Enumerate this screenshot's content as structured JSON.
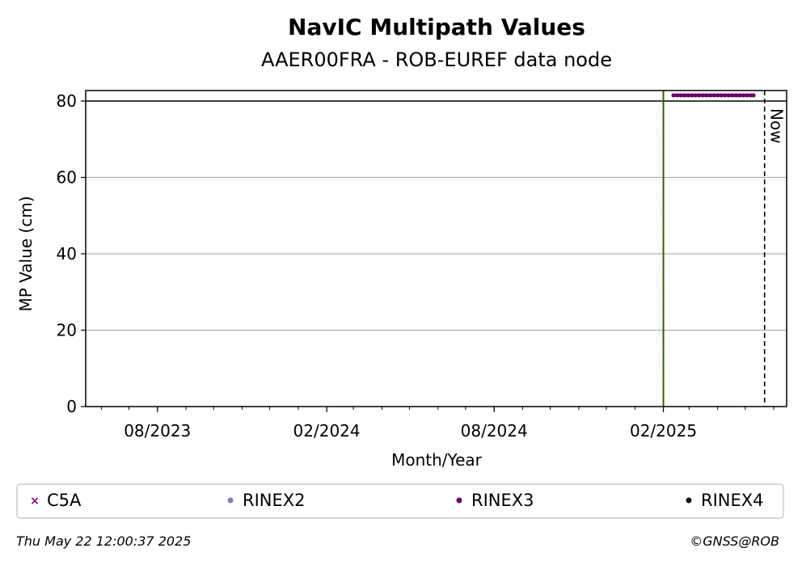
{
  "chart_data": {
    "type": "scatter",
    "title": "NavIC Multipath Values",
    "subtitle": "AAER00FRA - ROB-EUREF data node",
    "xlabel": "Month/Year",
    "ylabel": "MP Value (cm)",
    "x_type": "date",
    "xlim": [
      "2023-05-15",
      "2025-06-15"
    ],
    "ylim": [
      0,
      80
    ],
    "yticks": [
      0,
      20,
      40,
      60,
      80
    ],
    "xticks": [
      {
        "date": "2023-08-01",
        "label": "08/2023"
      },
      {
        "date": "2024-02-01",
        "label": "02/2024"
      },
      {
        "date": "2024-08-01",
        "label": "08/2024"
      },
      {
        "date": "2025-02-01",
        "label": "02/2025"
      }
    ],
    "grid": "y",
    "reference_lines": [
      {
        "type": "hline",
        "y": 80,
        "color": "#000000",
        "style": "solid"
      },
      {
        "type": "vline",
        "date": "2025-02-01",
        "color": "#008000",
        "overlay_color": "#cc0000",
        "style": "solid-dotted"
      },
      {
        "type": "vline",
        "date": "2025-05-22",
        "label": "Now",
        "color": "#000000",
        "style": "dashed"
      }
    ],
    "series": [
      {
        "name": "C5A",
        "marker": "x",
        "color": "#800080",
        "values": []
      },
      {
        "name": "RINEX2",
        "marker": "dot",
        "color": "#7b7fbf",
        "values": []
      },
      {
        "name": "RINEX3",
        "marker": "dot",
        "color": "#6a0066",
        "values": [
          {
            "x": "2025-02-12",
            "y": 81.5
          },
          {
            "x": "2025-02-16",
            "y": 81.5
          },
          {
            "x": "2025-02-20",
            "y": 81.5
          },
          {
            "x": "2025-02-24",
            "y": 81.5
          },
          {
            "x": "2025-02-28",
            "y": 81.5
          },
          {
            "x": "2025-03-04",
            "y": 81.5
          },
          {
            "x": "2025-03-08",
            "y": 81.5
          },
          {
            "x": "2025-03-12",
            "y": 81.5
          },
          {
            "x": "2025-03-16",
            "y": 81.5
          },
          {
            "x": "2025-03-20",
            "y": 81.5
          },
          {
            "x": "2025-03-24",
            "y": 81.5
          },
          {
            "x": "2025-03-28",
            "y": 81.5
          },
          {
            "x": "2025-04-01",
            "y": 81.5
          },
          {
            "x": "2025-04-05",
            "y": 81.5
          },
          {
            "x": "2025-04-09",
            "y": 81.5
          },
          {
            "x": "2025-04-13",
            "y": 81.5
          },
          {
            "x": "2025-04-17",
            "y": 81.5
          },
          {
            "x": "2025-04-21",
            "y": 81.5
          },
          {
            "x": "2025-04-25",
            "y": 81.5
          },
          {
            "x": "2025-04-29",
            "y": 81.5
          },
          {
            "x": "2025-05-03",
            "y": 81.5
          },
          {
            "x": "2025-05-07",
            "y": 81.5
          },
          {
            "x": "2025-05-10",
            "y": 81.5
          }
        ]
      },
      {
        "name": "RINEX4",
        "marker": "dot",
        "color": "#1a0a1a",
        "values": []
      }
    ],
    "legend_position": "bottom"
  },
  "footer": {
    "timestamp": "Thu May 22 12:00:37 2025",
    "credit": "©GNSS@ROB"
  }
}
